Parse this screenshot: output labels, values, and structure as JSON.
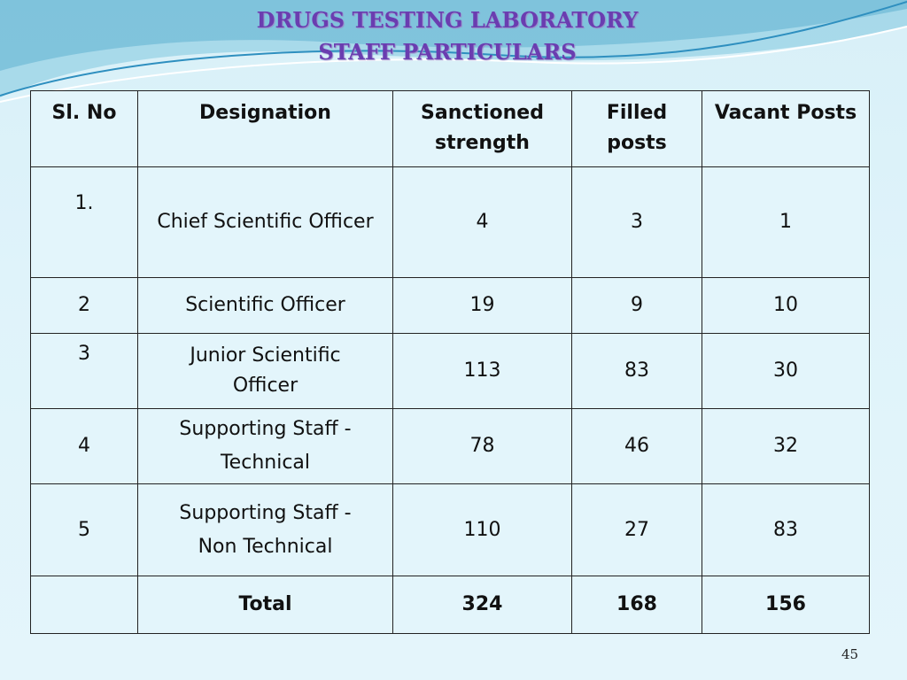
{
  "header": {
    "title": "DRUGS TESTING LABORATORY",
    "subtitle": "STAFF PARTICULARS"
  },
  "table": {
    "columns": [
      "Sl. No",
      "Designation",
      "Sanctioned strength",
      "Filled posts",
      "Vacant Posts"
    ],
    "rows": [
      {
        "sl": "1.",
        "designation": "Chief Scientific Officer",
        "sanctioned": 4,
        "filled": 3,
        "vacant": 1
      },
      {
        "sl": "2",
        "designation": "Scientific Officer",
        "sanctioned": 19,
        "filled": 9,
        "vacant": 10
      },
      {
        "sl": "3",
        "designation": "Junior Scientific Officer",
        "sanctioned": 113,
        "filled": 83,
        "vacant": 30
      },
      {
        "sl": "4",
        "designation": "Supporting Staff - Technical",
        "sanctioned": 78,
        "filled": 46,
        "vacant": 32
      },
      {
        "sl": "5",
        "designation": "Supporting Staff - Non Technical",
        "sanctioned": 110,
        "filled": 27,
        "vacant": 83
      }
    ],
    "total": {
      "label": "Total",
      "sanctioned": 324,
      "filled": 168,
      "vacant": 156
    }
  },
  "page_number": "45"
}
